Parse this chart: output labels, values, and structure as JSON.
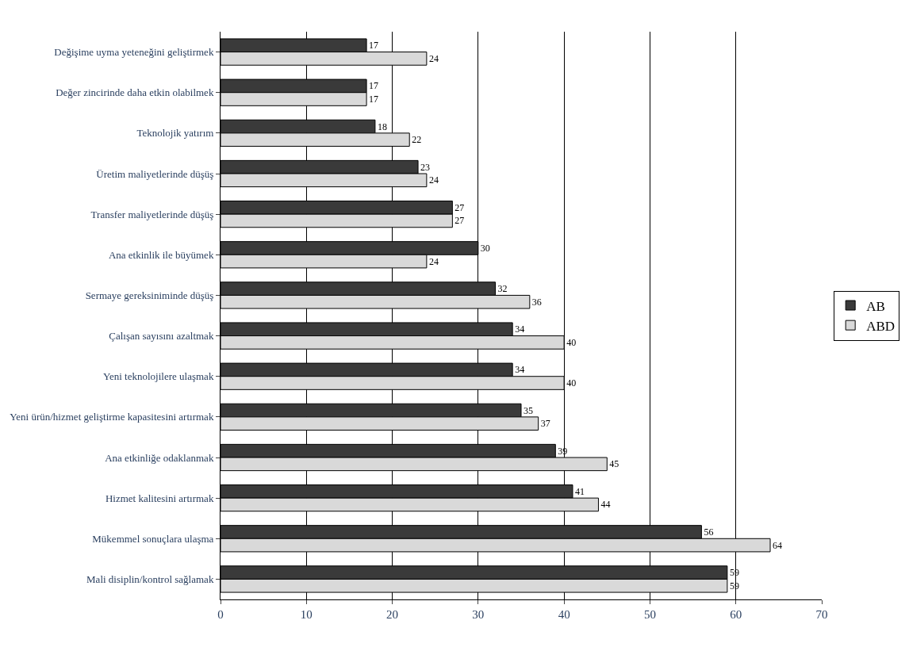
{
  "chart_data": {
    "type": "bar",
    "orientation": "horizontal",
    "categories": [
      "Değişime uyma yeteneğini geliştirmek",
      "Değer zincirinde daha etkin olabilmek",
      "Teknolojik yatırım",
      "Üretim maliyetlerinde düşüş",
      "Transfer maliyetlerinde düşüş",
      "Ana etkinlik ile büyümek",
      "Sermaye gereksiniminde düşüş",
      "Çalışan sayısını azaltmak",
      "Yeni teknolojilere ulaşmak",
      "Yeni ürün/hizmet geliştirme kapasitesini artırmak",
      "Ana etkinliğe odaklanmak",
      "Hizmet kalitesini artırmak",
      "Mükemmel sonuçlara ulaşma",
      "Mali disiplin/kontrol sağlamak"
    ],
    "series": [
      {
        "name": "AB",
        "color": "#3a3a3a",
        "values": [
          17,
          17,
          18,
          23,
          27,
          30,
          32,
          34,
          34,
          35,
          39,
          41,
          56,
          59
        ]
      },
      {
        "name": "ABD",
        "color": "#d9d9d9",
        "values": [
          24,
          17,
          22,
          24,
          27,
          24,
          36,
          40,
          40,
          37,
          45,
          44,
          64,
          59
        ]
      }
    ],
    "xlim": [
      0,
      70
    ],
    "xticks": [
      0,
      10,
      20,
      30,
      40,
      50,
      60,
      70
    ],
    "grid": "x",
    "legend": "right",
    "data_labels": true
  }
}
